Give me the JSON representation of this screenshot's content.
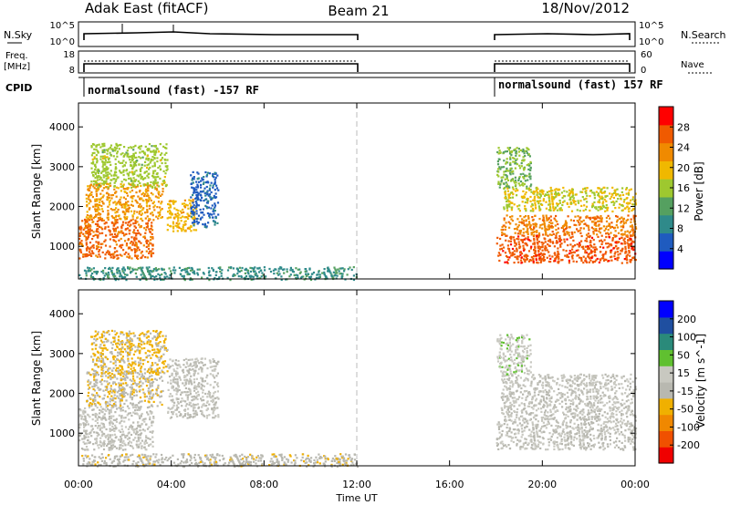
{
  "header": {
    "station": "Adak East (fitACF)",
    "beam": "Beam 21",
    "date": "18/Nov/2012"
  },
  "strip_labels": {
    "nsky": "N.Sky",
    "nsearch": "N.Search",
    "freq_line1": "Freq.",
    "freq_line2": "[MHz]",
    "nave": "Nave",
    "cpid": "CPID",
    "noise_tick_top": "10^5",
    "noise_tick_bottom": "10^0",
    "freq_tick_top": "18",
    "freq_tick_bottom": "8",
    "nave_tick_top": "60",
    "nave_tick_bottom": "0"
  },
  "cpid_segments": [
    {
      "label": "normalsound (fast) -157 RF",
      "start_hour": 0.0
    },
    {
      "label": "normalsound (fast) 157 RF",
      "start_hour": 18.0
    }
  ],
  "colors": {
    "power_scale": [
      "#0000ff",
      "#1f5bbf",
      "#2f8a8a",
      "#55a060",
      "#9ec82f",
      "#f0b800",
      "#f08a00",
      "#f05a00",
      "#ff0000"
    ],
    "velocity_scale": [
      "#f00000",
      "#f05000",
      "#f08800",
      "#f0b000",
      "#b8b8b0",
      "#c8c8c0",
      "#60c030",
      "#2a8a7a",
      "#1f4fa0",
      "#0000ff"
    ]
  },
  "chart_data": [
    {
      "type": "heatmap",
      "name": "power",
      "title": "Power [dB]",
      "xlabel": "Time UT",
      "ylabel": "Slant Range [km]",
      "xlim_hours": [
        0,
        24
      ],
      "ylim": [
        180,
        4600
      ],
      "x_tick_labels": [
        "00:00",
        "04:00",
        "08:00",
        "12:00",
        "16:00",
        "20:00",
        "00:00"
      ],
      "x_tick_hours": [
        0,
        4,
        8,
        12,
        16,
        20,
        24
      ],
      "y_ticks": [
        1000,
        2000,
        3000,
        4000
      ],
      "colorbar_label": "Power [dB]",
      "colorbar_ticks": [
        "4",
        "8",
        "12",
        "16",
        "20",
        "24",
        "28"
      ],
      "data_gap_hours": [
        12,
        18
      ],
      "regions": [
        {
          "t": [
            0.0,
            3.2
          ],
          "range": [
            700,
            1700
          ],
          "value": 26
        },
        {
          "t": [
            0.3,
            3.6
          ],
          "range": [
            1700,
            2600
          ],
          "value": 22
        },
        {
          "t": [
            0.5,
            3.8
          ],
          "range": [
            2500,
            3600
          ],
          "value": 16
        },
        {
          "t": [
            3.8,
            5.1
          ],
          "range": [
            1400,
            2200
          ],
          "value": 20
        },
        {
          "t": [
            4.8,
            6.0
          ],
          "range": [
            1500,
            2900
          ],
          "value": 6
        },
        {
          "t": [
            0.0,
            12.0
          ],
          "range": [
            180,
            500
          ],
          "value": 10
        },
        {
          "t": [
            18.0,
            24.0
          ],
          "range": [
            600,
            1300
          ],
          "value": 27
        },
        {
          "t": [
            18.2,
            24.0
          ],
          "range": [
            1300,
            1800
          ],
          "value": 24
        },
        {
          "t": [
            18.3,
            24.0
          ],
          "range": [
            1900,
            2500
          ],
          "value": 18
        },
        {
          "t": [
            18.0,
            19.5
          ],
          "range": [
            2500,
            3500
          ],
          "value": 14
        }
      ]
    },
    {
      "type": "heatmap",
      "name": "velocity",
      "title": "Velocity [m s^-1]",
      "xlabel": "Time UT",
      "ylabel": "Slant Range [km]",
      "xlim_hours": [
        0,
        24
      ],
      "ylim": [
        180,
        4600
      ],
      "x_tick_labels": [
        "00:00",
        "04:00",
        "08:00",
        "12:00",
        "16:00",
        "20:00",
        "00:00"
      ],
      "x_tick_hours": [
        0,
        4,
        8,
        12,
        16,
        20,
        24
      ],
      "y_ticks": [
        1000,
        2000,
        3000,
        4000
      ],
      "colorbar_label": "Velocity [m s^-1]",
      "colorbar_ticks": [
        "200",
        "100",
        "50",
        "15",
        "-15",
        "-50",
        "-100",
        "-200"
      ],
      "data_gap_hours": [
        12,
        18
      ],
      "regions": [
        {
          "t": [
            0.0,
            3.2
          ],
          "range": [
            600,
            1700
          ],
          "value": 0
        },
        {
          "t": [
            0.3,
            3.6
          ],
          "range": [
            1700,
            2600
          ],
          "value": -40
        },
        {
          "t": [
            0.5,
            3.8
          ],
          "range": [
            2500,
            3600
          ],
          "value": -60
        },
        {
          "t": [
            3.8,
            6.0
          ],
          "range": [
            1400,
            2900
          ],
          "value": 5
        },
        {
          "t": [
            0.0,
            12.0
          ],
          "range": [
            180,
            500
          ],
          "value": -30
        },
        {
          "t": [
            18.0,
            24.0
          ],
          "range": [
            600,
            1300
          ],
          "value": 0
        },
        {
          "t": [
            18.2,
            24.0
          ],
          "range": [
            1300,
            2500
          ],
          "value": 5
        },
        {
          "t": [
            18.0,
            19.5
          ],
          "range": [
            2500,
            3500
          ],
          "value": 30
        }
      ]
    }
  ]
}
